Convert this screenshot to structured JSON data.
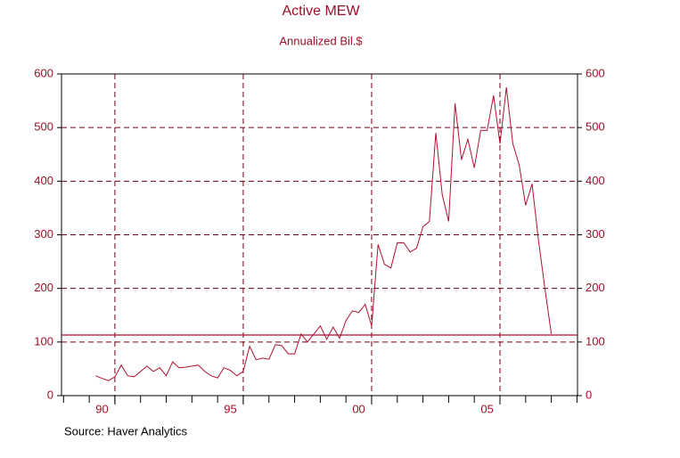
{
  "chart_data": {
    "type": "line",
    "title": "Active MEW",
    "subtitle": "Annualized Bil.$",
    "source": "Source: Haver Analytics",
    "x": [
      1990.25,
      1990.5,
      1990.75,
      1991,
      1991.25,
      1991.5,
      1991.75,
      1992,
      1992.25,
      1992.5,
      1992.75,
      1993,
      1993.25,
      1993.5,
      1993.75,
      1994,
      1994.25,
      1994.5,
      1994.75,
      1995,
      1995.25,
      1995.5,
      1995.75,
      1996,
      1996.25,
      1996.5,
      1996.75,
      1997,
      1997.25,
      1997.5,
      1997.75,
      1998,
      1998.25,
      1998.5,
      1998.75,
      1999,
      1999.25,
      1999.5,
      1999.75,
      2000,
      2000.25,
      2000.5,
      2000.75,
      2001,
      2001.25,
      2001.5,
      2001.75,
      2002,
      2002.25,
      2002.5,
      2002.75,
      2003,
      2003.25,
      2003.5,
      2003.75,
      2004,
      2004.25,
      2004.5,
      2004.75,
      2005,
      2005.25,
      2005.5,
      2005.75,
      2006,
      2006.25,
      2006.5,
      2006.75,
      2007,
      2007.25,
      2007.5,
      2007.75,
      2008
    ],
    "series": [
      {
        "name": "Active MEW",
        "color": "#b01030",
        "values": [
          37,
          32,
          28,
          35,
          57,
          37,
          35,
          45,
          55,
          45,
          52,
          37,
          63,
          52,
          53,
          55,
          57,
          45,
          37,
          33,
          52,
          47,
          37,
          45,
          92,
          67,
          70,
          68,
          95,
          93,
          78,
          78,
          115,
          100,
          115,
          130,
          105,
          128,
          107,
          140,
          158,
          155,
          170,
          130,
          282,
          245,
          238,
          285,
          285,
          268,
          275,
          315,
          325,
          490,
          375,
          325,
          545,
          440,
          478,
          425,
          495,
          495,
          560,
          470,
          575,
          470,
          430,
          355,
          395,
          290,
          200,
          115
        ]
      }
    ],
    "reference_line": 113,
    "xlim": [
      1988.92,
      2009.02
    ],
    "xticks": [
      {
        "value": 1990.5,
        "label": "90"
      },
      {
        "value": 1995.5,
        "label": "95"
      },
      {
        "value": 2000.5,
        "label": "00"
      },
      {
        "value": 2005.5,
        "label": "05"
      }
    ],
    "xgrid": [
      1991,
      1996,
      2001,
      2006
    ],
    "ylim": [
      0,
      600
    ],
    "yticks": [
      0,
      100,
      200,
      300,
      400,
      500,
      600
    ],
    "y2lim": [
      0,
      600
    ],
    "y2ticks": [
      0,
      100,
      200,
      300,
      400,
      500,
      600
    ],
    "grid": true
  }
}
